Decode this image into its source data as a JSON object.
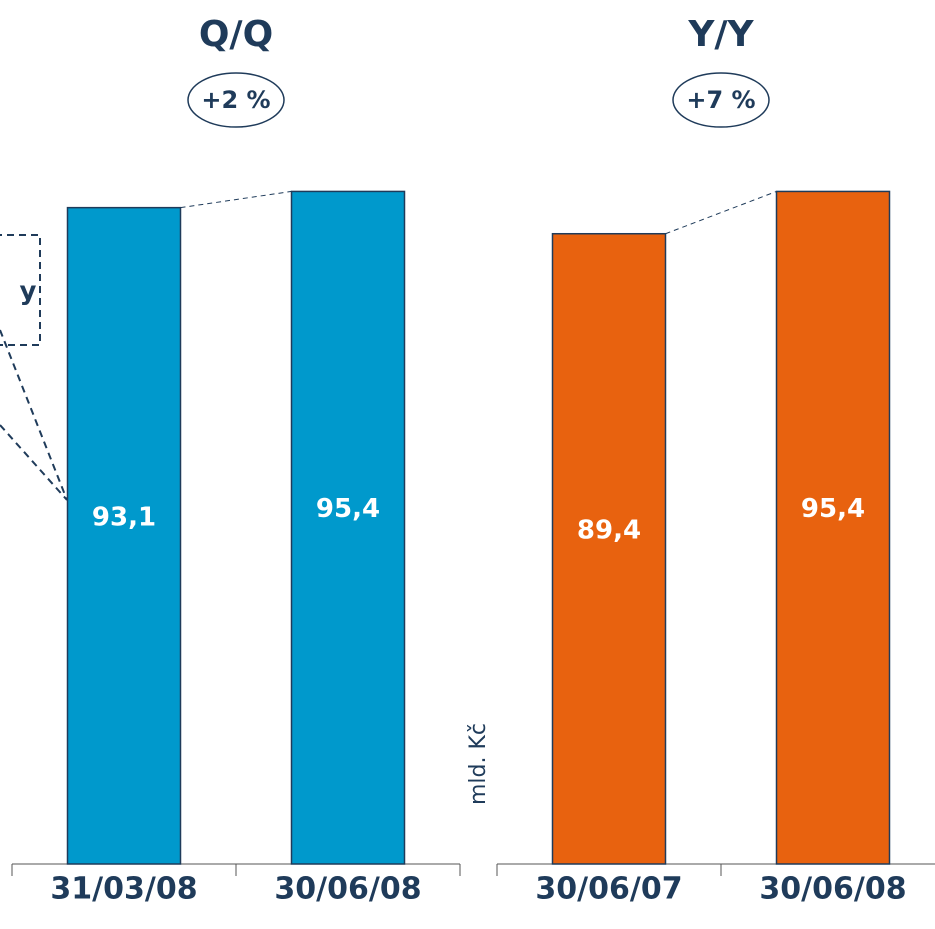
{
  "chart_data": [
    {
      "type": "bar",
      "title": "Q/Q",
      "annotations": [
        "+2 %",
        "y"
      ],
      "categories": [
        "31/03/08",
        "30/06/08"
      ],
      "values": [
        93.1,
        95.4
      ],
      "value_labels": [
        "93,1",
        "95,4"
      ],
      "color": "#0099cc",
      "ylim": [
        0,
        100
      ]
    },
    {
      "type": "bar",
      "title": "Y/Y",
      "annotations": [
        "+7 %"
      ],
      "y_label": "mld. Kč",
      "categories": [
        "30/06/07",
        "30/06/08"
      ],
      "values": [
        89.4,
        95.4
      ],
      "value_labels": [
        "89,4",
        "95,4"
      ],
      "color": "#e8620f",
      "ylim": [
        0,
        100
      ]
    }
  ]
}
